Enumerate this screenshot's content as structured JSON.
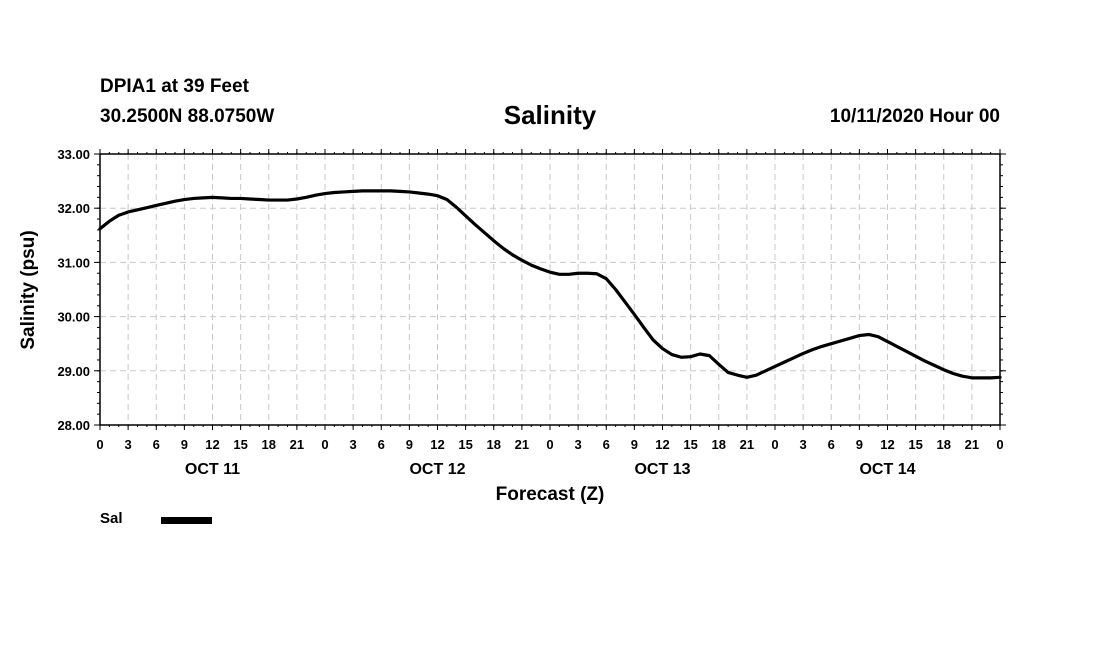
{
  "header": {
    "station": "DPIA1 at 39 Feet",
    "coords": "30.2500N 88.0750W",
    "issued": "10/11/2020 Hour 00"
  },
  "legend": {
    "label": "Sal"
  },
  "chart_data": {
    "type": "line",
    "title": "Salinity",
    "xlabel": "Forecast (Z)",
    "ylabel": "Salinity (psu)",
    "ylim": [
      28,
      33
    ],
    "yticks": [
      "28.00",
      "29.00",
      "30.00",
      "31.00",
      "32.00",
      "33.00"
    ],
    "xlim": [
      0,
      96
    ],
    "xtick_labels": [
      "0",
      "3",
      "6",
      "9",
      "12",
      "15",
      "18",
      "21",
      "0",
      "3",
      "6",
      "9",
      "12",
      "15",
      "18",
      "21",
      "0",
      "3",
      "6",
      "9",
      "12",
      "15",
      "18",
      "21",
      "0",
      "3",
      "6",
      "9",
      "12",
      "15",
      "18",
      "21",
      "0"
    ],
    "day_labels": [
      {
        "label": "OCT 11",
        "hour": 12
      },
      {
        "label": "OCT 12",
        "hour": 36
      },
      {
        "label": "OCT 13",
        "hour": 60
      },
      {
        "label": "OCT 14",
        "hour": 84
      }
    ],
    "grid": true,
    "series": [
      {
        "name": "Sal",
        "color": "#000000",
        "x": [
          0,
          1,
          2,
          3,
          4,
          5,
          6,
          7,
          8,
          9,
          10,
          11,
          12,
          13,
          14,
          15,
          16,
          17,
          18,
          19,
          20,
          21,
          22,
          23,
          24,
          25,
          26,
          27,
          28,
          29,
          30,
          31,
          32,
          33,
          34,
          35,
          36,
          37,
          38,
          39,
          40,
          41,
          42,
          43,
          44,
          45,
          46,
          47,
          48,
          49,
          50,
          51,
          52,
          53,
          54,
          55,
          56,
          57,
          58,
          59,
          60,
          61,
          62,
          63,
          64,
          65,
          66,
          67,
          68,
          69,
          70,
          71,
          72,
          73,
          74,
          75,
          76,
          77,
          78,
          79,
          80,
          81,
          82,
          83,
          84,
          85,
          86,
          87,
          88,
          89,
          90,
          91,
          92,
          93,
          94,
          95,
          96
        ],
        "values": [
          31.62,
          31.76,
          31.87,
          31.93,
          31.97,
          32.01,
          32.05,
          32.09,
          32.13,
          32.16,
          32.18,
          32.19,
          32.2,
          32.19,
          32.18,
          32.18,
          32.17,
          32.16,
          32.15,
          32.15,
          32.15,
          32.17,
          32.2,
          32.24,
          32.27,
          32.29,
          32.3,
          32.31,
          32.32,
          32.32,
          32.32,
          32.32,
          32.31,
          32.3,
          32.28,
          32.26,
          32.23,
          32.16,
          32.02,
          31.86,
          31.7,
          31.55,
          31.4,
          31.26,
          31.14,
          31.04,
          30.95,
          30.88,
          30.82,
          30.78,
          30.78,
          30.8,
          30.8,
          30.79,
          30.7,
          30.5,
          30.27,
          30.04,
          29.8,
          29.57,
          29.41,
          29.3,
          29.25,
          29.26,
          29.31,
          29.28,
          29.12,
          28.97,
          28.92,
          28.88,
          28.92,
          29.0,
          29.08,
          29.16,
          29.24,
          29.32,
          29.39,
          29.45,
          29.5,
          29.55,
          29.6,
          29.65,
          29.67,
          29.63,
          29.54,
          29.45,
          29.36,
          29.27,
          29.18,
          29.1,
          29.02,
          28.95,
          28.9,
          28.87,
          28.87,
          28.87,
          28.88
        ]
      }
    ]
  }
}
